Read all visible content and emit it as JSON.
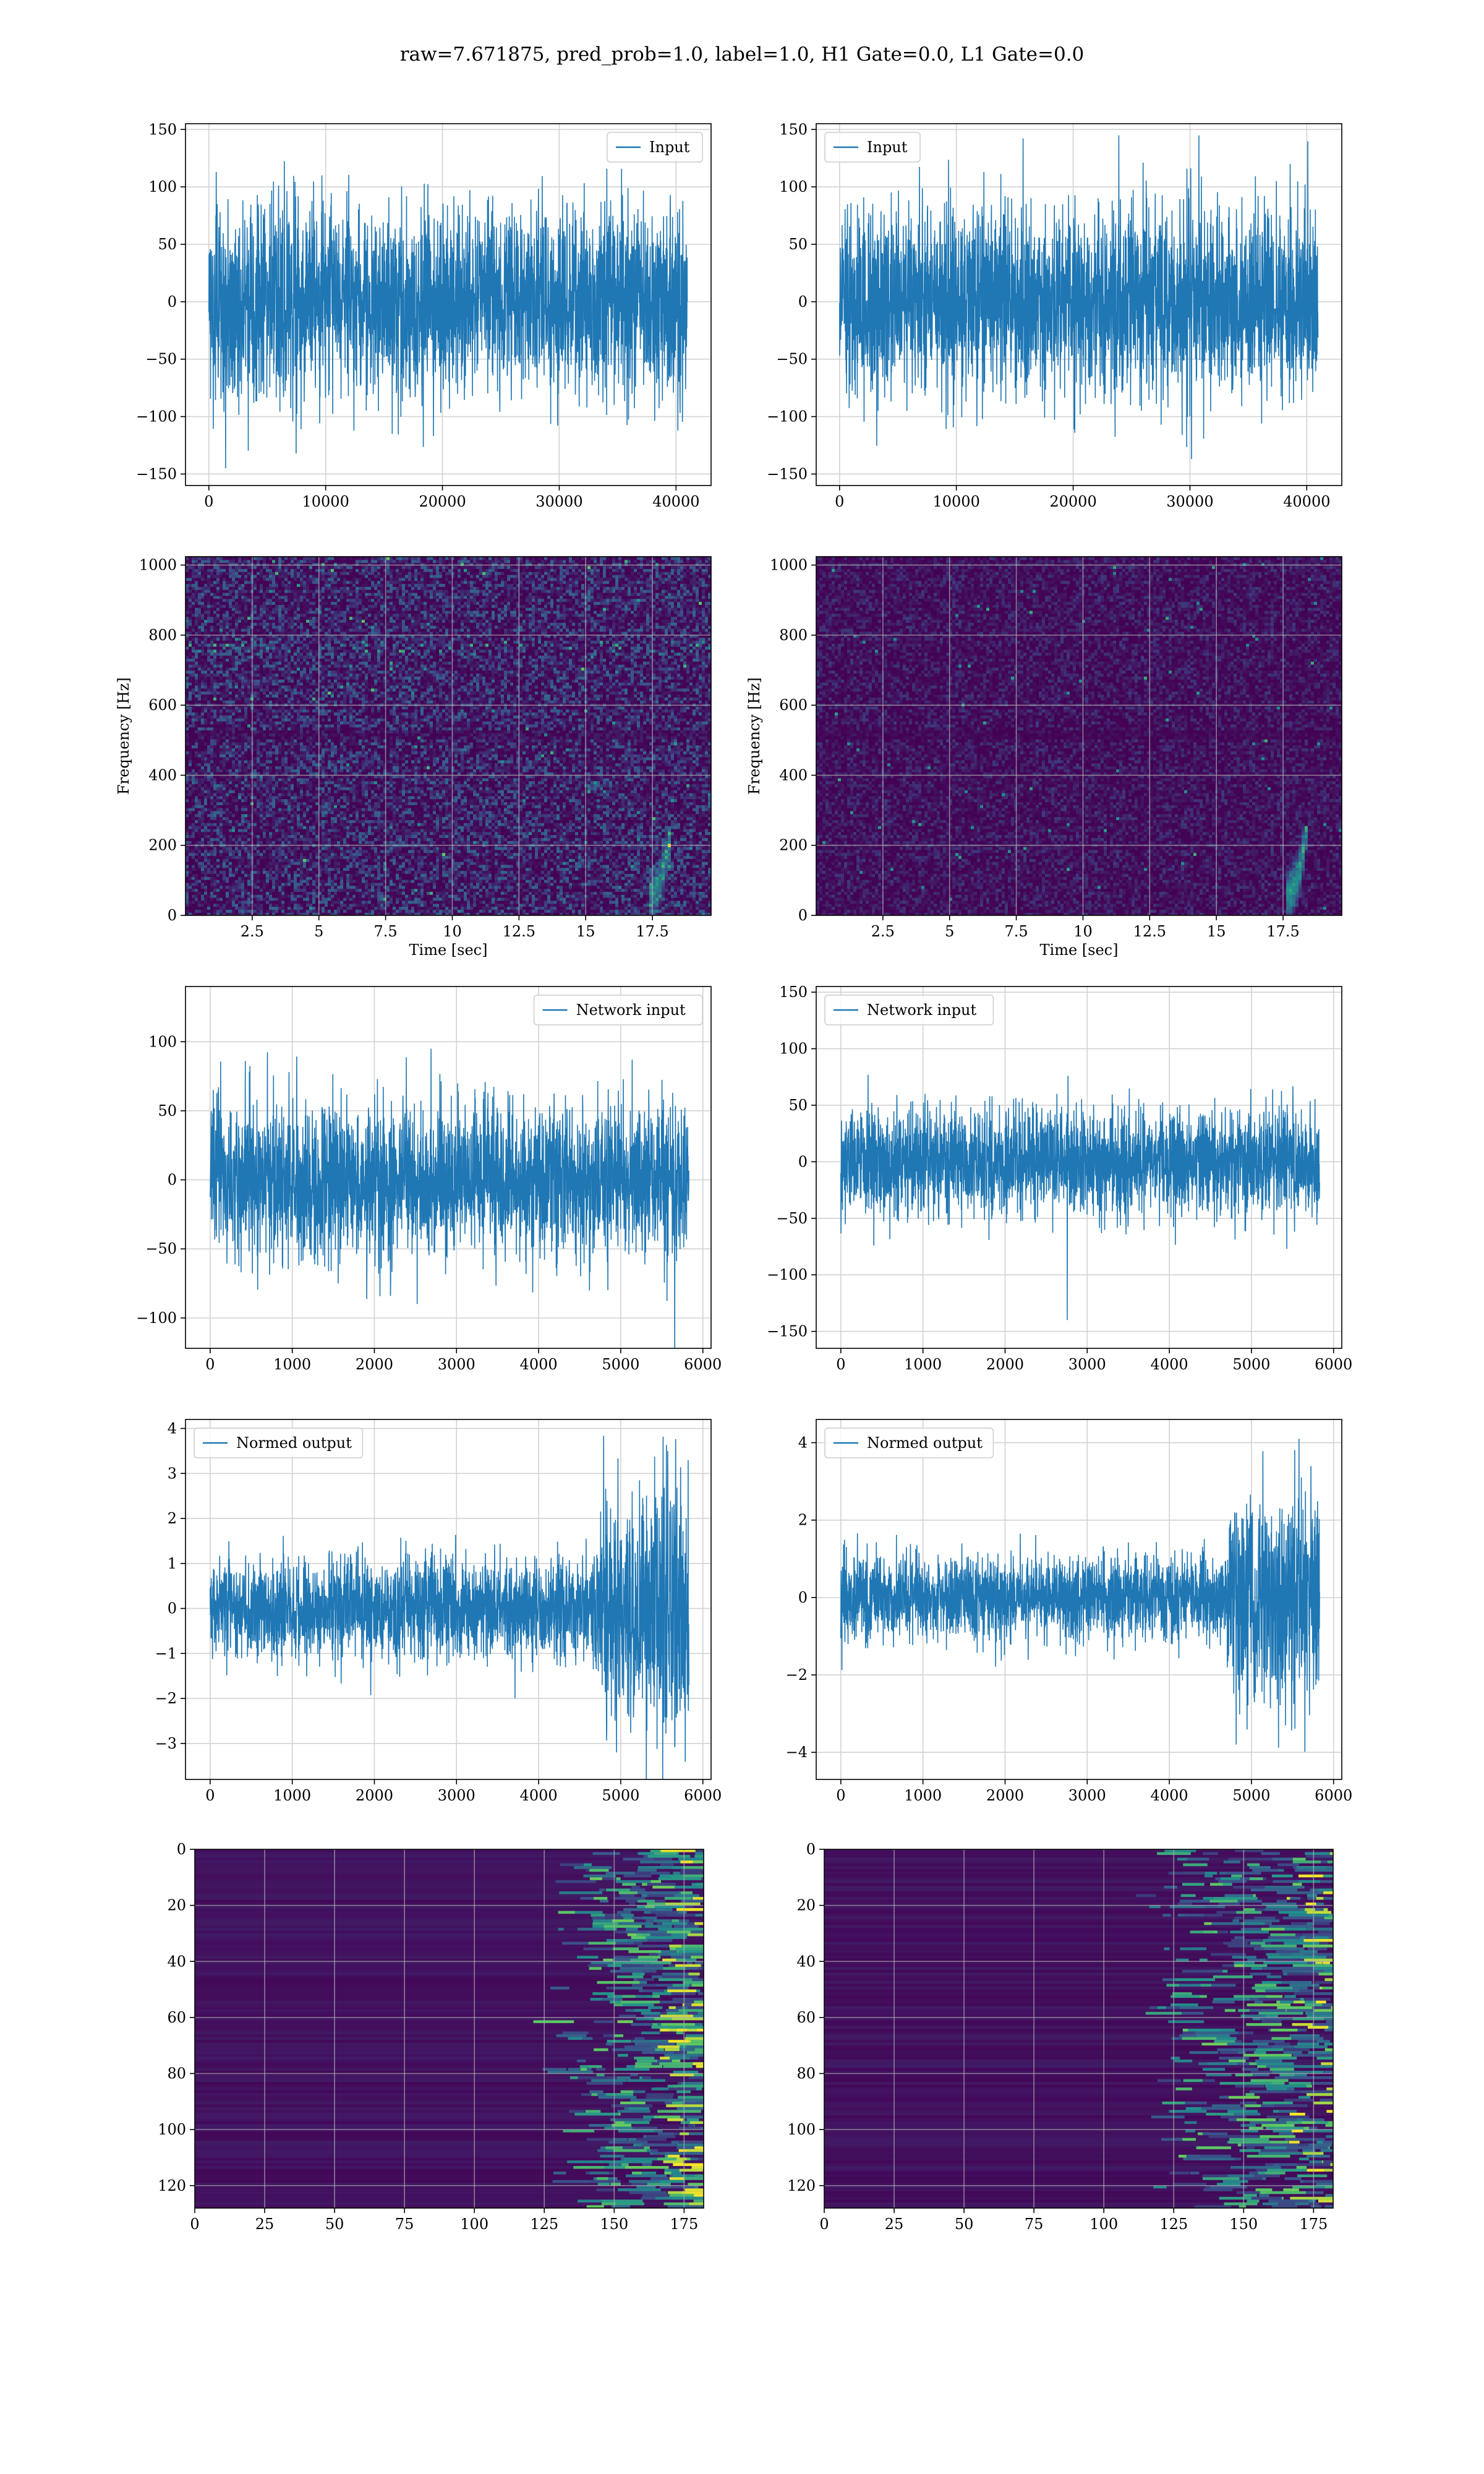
{
  "figure": {
    "suptitle": "raw=7.671875, pred_prob=1.0, label=1.0, H1 Gate=0.0, L1 Gate=0.0"
  },
  "colors": {
    "line": "#1f77b4",
    "grid": "#d2d2d2",
    "heatmap_bg": "#440154",
    "heatmap_mid": "#31688e",
    "heatmap_green": "#35b779",
    "heatmap_yellow": "#fde725"
  },
  "chart_data": [
    {
      "id": "input-h1",
      "type": "line",
      "series": [
        {
          "name": "Input"
        }
      ],
      "legend": "top-right",
      "grid": true,
      "xlim": [
        -2000,
        43000
      ],
      "ylim": [
        -160,
        155
      ],
      "xticks": [
        0,
        10000,
        20000,
        30000,
        40000
      ],
      "yticks": [
        -150,
        -100,
        -50,
        0,
        50,
        100,
        150
      ],
      "x_range": [
        0,
        40960
      ],
      "amplitude": 42,
      "peak": 145,
      "xlabel": "",
      "ylabel": ""
    },
    {
      "id": "input-l1",
      "type": "line",
      "series": [
        {
          "name": "Input"
        }
      ],
      "legend": "top-left",
      "grid": true,
      "xlim": [
        -2000,
        43000
      ],
      "ylim": [
        -160,
        155
      ],
      "xticks": [
        0,
        10000,
        20000,
        30000,
        40000
      ],
      "yticks": [
        -150,
        -100,
        -50,
        0,
        50,
        100,
        150
      ],
      "x_range": [
        0,
        40960
      ],
      "amplitude": 42,
      "peak": 145,
      "xlabel": "",
      "ylabel": ""
    },
    {
      "id": "spectrogram-h1",
      "type": "heatmap",
      "grid": true,
      "xlim": [
        0,
        19.7
      ],
      "ylim": [
        0,
        1024
      ],
      "xticks": [
        2.5,
        5.0,
        7.5,
        10.0,
        12.5,
        15.0,
        17.5
      ],
      "yticks": [
        0,
        200,
        400,
        600,
        800,
        1000
      ],
      "xlabel": "Time [sec]",
      "ylabel": "Frequency [Hz]",
      "intensity": "high",
      "chirp_time": 18.0
    },
    {
      "id": "spectrogram-l1",
      "type": "heatmap",
      "grid": true,
      "xlim": [
        0,
        19.7
      ],
      "ylim": [
        0,
        1024
      ],
      "xticks": [
        2.5,
        5.0,
        7.5,
        10.0,
        12.5,
        15.0,
        17.5
      ],
      "yticks": [
        0,
        200,
        400,
        600,
        800,
        1000
      ],
      "xlabel": "Time [sec]",
      "ylabel": "Frequency [Hz]",
      "intensity": "low",
      "chirp_time": 18.2
    },
    {
      "id": "network-input-h1",
      "type": "line",
      "series": [
        {
          "name": "Network input"
        }
      ],
      "legend": "top-right",
      "grid": true,
      "xlim": [
        -300,
        6100
      ],
      "ylim": [
        -122,
        140
      ],
      "xticks": [
        0,
        1000,
        2000,
        3000,
        4000,
        5000,
        6000
      ],
      "yticks": [
        -100,
        -50,
        0,
        50,
        100
      ],
      "x_range": [
        0,
        5830
      ],
      "amplitude": 28,
      "peak": 125,
      "xlabel": "",
      "ylabel": ""
    },
    {
      "id": "network-input-l1",
      "type": "line",
      "series": [
        {
          "name": "Network input"
        }
      ],
      "legend": "top-left",
      "grid": true,
      "xlim": [
        -300,
        6100
      ],
      "ylim": [
        -165,
        155
      ],
      "xticks": [
        0,
        1000,
        2000,
        3000,
        4000,
        5000,
        6000
      ],
      "yticks": [
        -150,
        -100,
        -50,
        0,
        50,
        100,
        150
      ],
      "x_range": [
        0,
        5830
      ],
      "amplitude": 24,
      "peak": 140,
      "xlabel": "",
      "ylabel": ""
    },
    {
      "id": "normed-output-h1",
      "type": "line",
      "series": [
        {
          "name": "Normed output"
        }
      ],
      "legend": "top-left",
      "grid": true,
      "xlim": [
        -300,
        6100
      ],
      "ylim": [
        -3.8,
        4.2
      ],
      "xticks": [
        0,
        1000,
        2000,
        3000,
        4000,
        5000,
        6000
      ],
      "yticks": [
        -3,
        -2,
        -1,
        0,
        1,
        2,
        3,
        4
      ],
      "x_range": [
        0,
        5830
      ],
      "amplitude": 0.55,
      "peak": 3.8,
      "burst_start": 4700,
      "burst_scale": 2.6,
      "xlabel": "",
      "ylabel": ""
    },
    {
      "id": "normed-output-l1",
      "type": "line",
      "series": [
        {
          "name": "Normed output"
        }
      ],
      "legend": "top-left",
      "grid": true,
      "xlim": [
        -300,
        6100
      ],
      "ylim": [
        -4.7,
        4.6
      ],
      "xticks": [
        0,
        1000,
        2000,
        3000,
        4000,
        5000,
        6000
      ],
      "yticks": [
        -4,
        -2,
        0,
        2,
        4
      ],
      "x_range": [
        0,
        5830
      ],
      "amplitude": 0.55,
      "peak": 4.1,
      "burst_start": 4700,
      "burst_scale": 2.6,
      "xlabel": "",
      "ylabel": ""
    },
    {
      "id": "feature-map-h1",
      "type": "heatmap",
      "grid": true,
      "xlim": [
        0,
        182
      ],
      "ylim": [
        128,
        0
      ],
      "xticks": [
        0,
        25,
        50,
        75,
        100,
        125,
        150,
        175
      ],
      "yticks": [
        0,
        20,
        40,
        60,
        80,
        100,
        120
      ],
      "xlabel": "",
      "ylabel": "",
      "activation_start": 120
    },
    {
      "id": "feature-map-l1",
      "type": "heatmap",
      "grid": true,
      "xlim": [
        0,
        182
      ],
      "ylim": [
        128,
        0
      ],
      "xticks": [
        0,
        25,
        50,
        75,
        100,
        125,
        150,
        175
      ],
      "yticks": [
        0,
        20,
        40,
        60,
        80,
        100,
        120
      ],
      "xlabel": "",
      "ylabel": "",
      "activation_start": 110
    }
  ]
}
